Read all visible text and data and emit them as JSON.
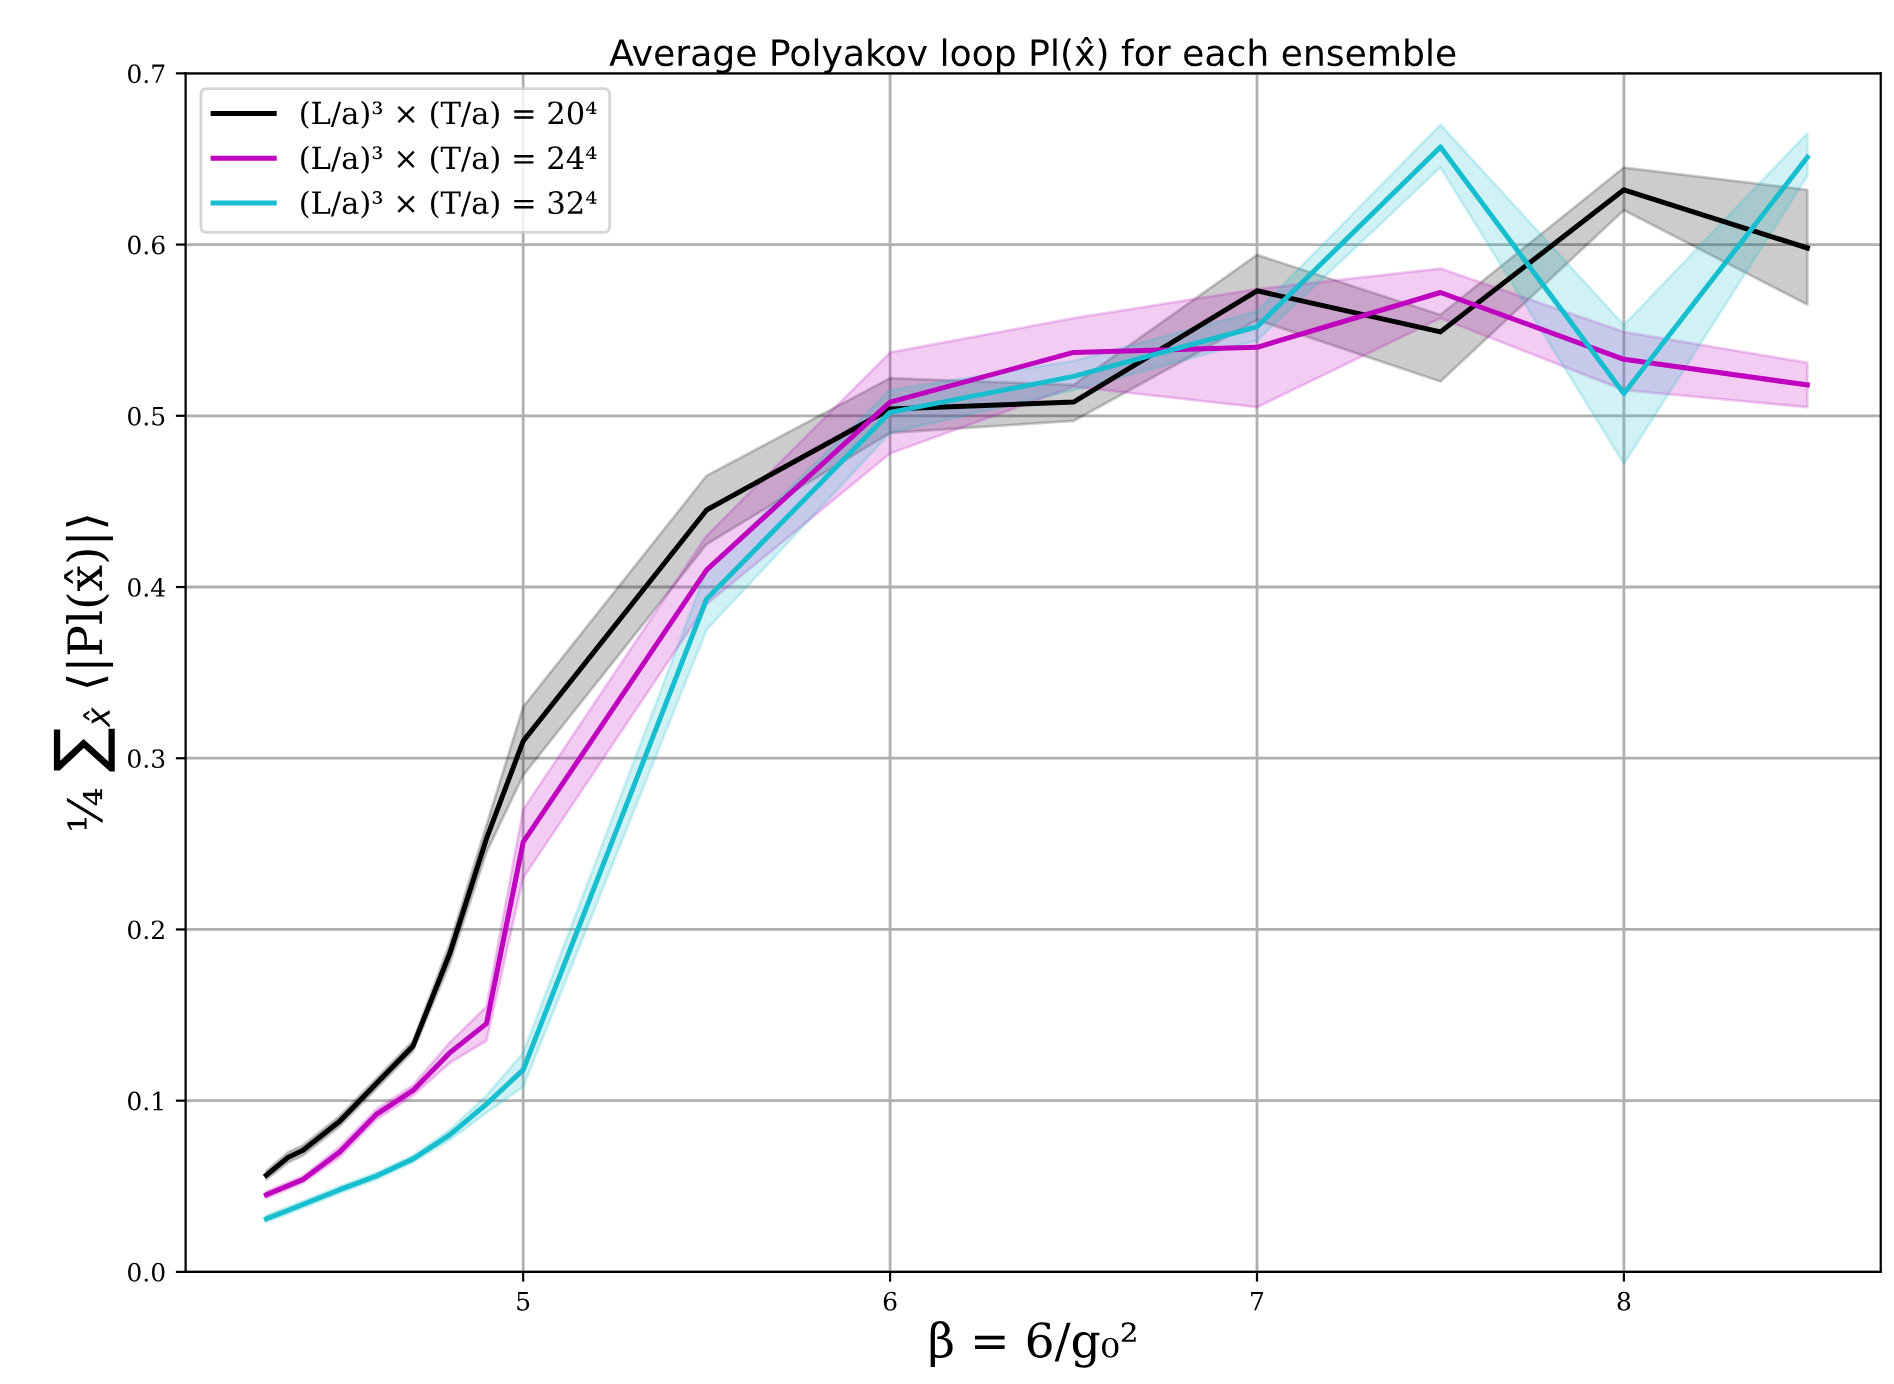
{
  "chart_data": {
    "type": "line",
    "title": "Average Polyakov loop Pl(x̂) for each ensemble",
    "xlabel": "β = 6/g₀²",
    "ylabel": "¼ ∑$_{x̂}$ ⟨|Pl(x̂)|⟩",
    "xlim": [
      4.08,
      8.7
    ],
    "ylim": [
      0,
      0.7
    ],
    "xticks": [
      5,
      6,
      7,
      8
    ],
    "yticks": [
      {
        "value": 0,
        "label": "0.0"
      },
      {
        "value": 0.1,
        "label": "0.1"
      },
      {
        "value": 0.2,
        "label": "0.2"
      },
      {
        "value": 0.3,
        "label": "0.3"
      },
      {
        "value": 0.4,
        "label": "0.4"
      },
      {
        "value": 0.5,
        "label": "0.5"
      },
      {
        "value": 0.6,
        "label": "0.6"
      },
      {
        "value": 0.7,
        "label": "0.7"
      }
    ],
    "grid": true,
    "legend": "top left",
    "line_style": "solid",
    "marker": "none",
    "series": [
      {
        "name": "(L/a)³ × (T/a) = 20⁴",
        "color": "#000000",
        "x": [
          4.3,
          4.36,
          4.4,
          4.5,
          4.6,
          4.7,
          4.8,
          4.9,
          5.0,
          5.5,
          6.0,
          6.5,
          7.0,
          7.5,
          8.0,
          8.5
        ],
        "values": [
          0.0565,
          0.067,
          0.071,
          0.088,
          0.11,
          0.132,
          0.186,
          0.253,
          0.31,
          0.445,
          0.504,
          0.508,
          0.573,
          0.549,
          0.632,
          0.598
        ],
        "lower": [
          0.054,
          0.064,
          0.068,
          0.085,
          0.107,
          0.129,
          0.18,
          0.245,
          0.29,
          0.425,
          0.49,
          0.497,
          0.556,
          0.52,
          0.62,
          0.565
        ],
        "upper": [
          0.059,
          0.07,
          0.074,
          0.091,
          0.113,
          0.135,
          0.192,
          0.261,
          0.33,
          0.465,
          0.522,
          0.518,
          0.594,
          0.559,
          0.645,
          0.632
        ]
      },
      {
        "name": "(L/a)³ × (T/a) = 24⁴",
        "color": "#bf00bf",
        "x": [
          4.3,
          4.4,
          4.5,
          4.6,
          4.7,
          4.8,
          4.9,
          5.0,
          5.5,
          6.0,
          6.5,
          7.0,
          7.5,
          8.0,
          8.5
        ],
        "values": [
          0.045,
          0.054,
          0.07,
          0.092,
          0.106,
          0.128,
          0.145,
          0.251,
          0.41,
          0.508,
          0.537,
          0.54,
          0.572,
          0.533,
          0.518
        ],
        "lower": [
          0.043,
          0.052,
          0.067,
          0.089,
          0.103,
          0.122,
          0.135,
          0.23,
          0.39,
          0.478,
          0.517,
          0.505,
          0.557,
          0.515,
          0.505
        ],
        "upper": [
          0.047,
          0.056,
          0.073,
          0.095,
          0.109,
          0.134,
          0.155,
          0.27,
          0.43,
          0.537,
          0.557,
          0.574,
          0.586,
          0.549,
          0.531
        ]
      },
      {
        "name": "(L/a)³ × (T/a) = 32⁴",
        "color": "#17becf",
        "x": [
          4.3,
          4.36,
          4.5,
          4.6,
          4.7,
          4.8,
          4.9,
          5.0,
          5.5,
          6.0,
          6.5,
          7.0,
          7.5,
          8.0,
          8.5
        ],
        "values": [
          0.031,
          0.036,
          0.048,
          0.056,
          0.066,
          0.08,
          0.098,
          0.118,
          0.393,
          0.502,
          0.523,
          0.552,
          0.657,
          0.513,
          0.651
        ],
        "lower": [
          0.029,
          0.034,
          0.046,
          0.054,
          0.064,
          0.077,
          0.093,
          0.108,
          0.375,
          0.49,
          0.515,
          0.544,
          0.645,
          0.472,
          0.64
        ],
        "upper": [
          0.033,
          0.038,
          0.05,
          0.058,
          0.068,
          0.083,
          0.103,
          0.128,
          0.41,
          0.515,
          0.532,
          0.561,
          0.67,
          0.553,
          0.665
        ]
      }
    ]
  }
}
